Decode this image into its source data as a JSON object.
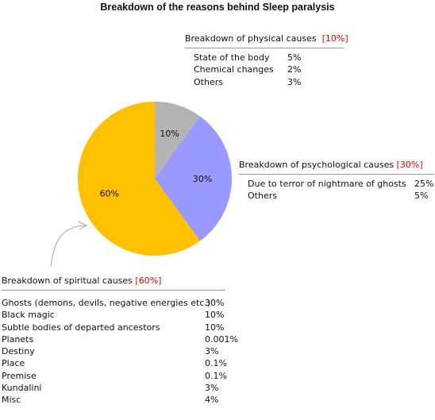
{
  "title": "Breakdown of the reasons behind Sleep paralysis",
  "chart_data": {
    "type": "pie",
    "title": "Breakdown of the reasons behind Sleep paralysis",
    "slices": [
      {
        "label": "10%",
        "category": "physical",
        "value": 10,
        "color": "#b3b3b3"
      },
      {
        "label": "30%",
        "category": "psychological",
        "value": 30,
        "color": "#9999ff"
      },
      {
        "label": "60%",
        "category": "spiritual",
        "value": 60,
        "color": "#ffc000"
      }
    ]
  },
  "physical": {
    "heading": "Breakdown of physical causes",
    "pct": "[10%]",
    "rows": [
      {
        "label": "State of the body",
        "value": "5%"
      },
      {
        "label": "Chemical changes",
        "value": "2%"
      },
      {
        "label": "Others",
        "value": "3%"
      }
    ]
  },
  "psychological": {
    "heading": "Breakdown of psychological causes",
    "pct": "[30%]",
    "rows": [
      {
        "label": "Due to terror of nightmare of ghosts",
        "value": "25%"
      },
      {
        "label": "Others",
        "value": "5%"
      }
    ]
  },
  "spiritual": {
    "heading": "Breakdown of spiritual causes",
    "pct": "[60%]",
    "rows": [
      {
        "label": "Ghosts (demons, devils, negative energies etc.)",
        "value": "30%"
      },
      {
        "label": "Black magic",
        "value": "10%"
      },
      {
        "label": "Subtle bodies of departed ancestors",
        "value": "10%"
      },
      {
        "label": "Planets",
        "value": "0.001%"
      },
      {
        "label": "Destiny",
        "value": "3%"
      },
      {
        "label": "Place",
        "value": "0.1%"
      },
      {
        "label": "Premise",
        "value": "0.1%"
      },
      {
        "label": "Kundalini",
        "value": "3%"
      },
      {
        "label": "Misc",
        "value": "4%"
      }
    ]
  }
}
